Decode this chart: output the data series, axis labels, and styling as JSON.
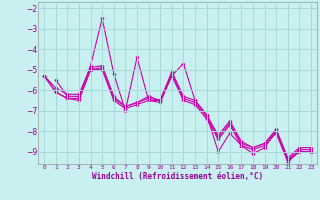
{
  "title": "",
  "xlabel": "Windchill (Refroidissement éolien,°C)",
  "ylabel": "",
  "bg_color": "#c8f0f0",
  "grid_color": "#a8d8d8",
  "line_color": "#cc00aa",
  "tick_color": "#990099",
  "xlim": [
    -0.5,
    23.5
  ],
  "ylim": [
    -9.6,
    -1.7
  ],
  "yticks": [
    -9,
    -8,
    -7,
    -6,
    -5,
    -4,
    -3,
    -2
  ],
  "xticks": [
    0,
    1,
    2,
    3,
    4,
    5,
    6,
    7,
    8,
    9,
    10,
    11,
    12,
    13,
    14,
    15,
    16,
    17,
    18,
    19,
    20,
    21,
    22,
    23
  ],
  "series": [
    [
      null,
      -5.5,
      -6.3,
      -6.3,
      -4.8,
      -2.5,
      -5.2,
      -7.0,
      -4.4,
      -6.5,
      -6.5,
      -5.3,
      -4.7,
      -6.5,
      -7.2,
      -9.0,
      -8.1,
      -8.7,
      -9.1,
      -8.8,
      -8.0,
      -9.4,
      -9.0,
      -9.0
    ],
    [
      -5.3,
      -6.1,
      -6.4,
      -6.4,
      -5.0,
      -4.9,
      -6.4,
      -6.8,
      -6.6,
      -6.4,
      -6.5,
      -5.2,
      -6.4,
      -6.6,
      -7.3,
      -8.3,
      -7.6,
      -8.6,
      -8.8,
      -8.6,
      -8.0,
      -9.4,
      -8.9,
      -8.9
    ],
    [
      -5.3,
      -5.9,
      -6.2,
      -6.2,
      -4.9,
      -4.8,
      -6.3,
      -6.8,
      -6.6,
      -6.3,
      -6.5,
      -5.1,
      -6.3,
      -6.5,
      -7.2,
      -8.2,
      -7.5,
      -8.5,
      -8.8,
      -8.6,
      -7.9,
      -9.3,
      -8.8,
      -8.8
    ],
    [
      -5.3,
      -6.1,
      -6.4,
      -6.5,
      -5.0,
      -5.0,
      -6.5,
      -6.9,
      -6.7,
      -6.5,
      -6.6,
      -5.3,
      -6.5,
      -6.7,
      -7.4,
      -8.4,
      -7.7,
      -8.7,
      -8.9,
      -8.7,
      -8.1,
      -9.5,
      -9.0,
      -9.0
    ]
  ]
}
